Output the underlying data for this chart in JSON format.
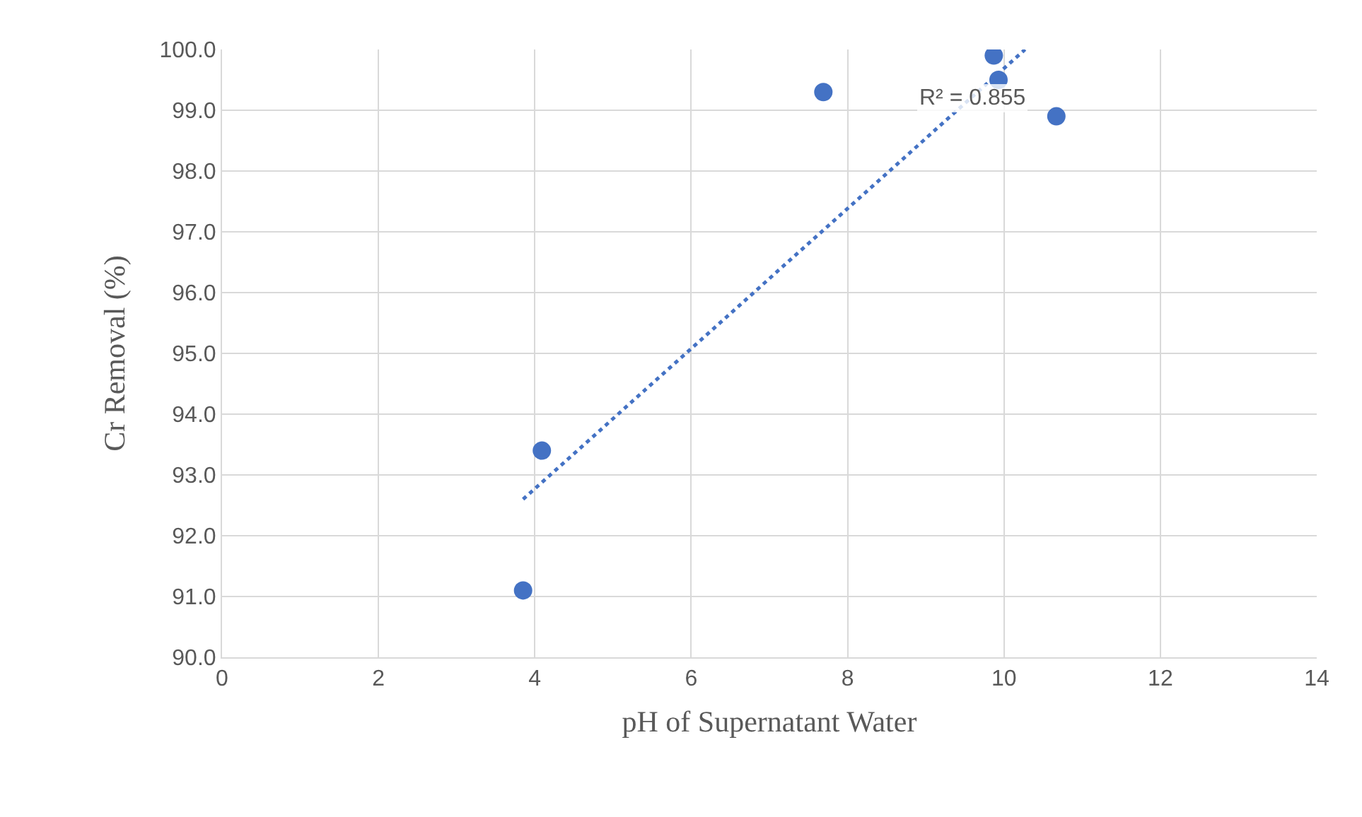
{
  "chart_data": {
    "type": "scatter",
    "xlabel": "pH of Supernatant Water",
    "ylabel": "Cr Removal (%)",
    "series": [
      {
        "color": "#4472c4",
        "marker": "circle",
        "x": [
          3.85,
          4.09,
          7.69,
          9.87,
          9.93,
          10.67
        ],
        "values": [
          91.1,
          93.4,
          99.3,
          99.9,
          99.5,
          98.9
        ]
      },
      {
        "type": "line",
        "color": "#4472c4",
        "marker": "none",
        "line_style": "dotted",
        "x": [
          3.85,
          10.27
        ],
        "values": [
          92.6,
          100.0
        ]
      }
    ],
    "annotations": [
      "R² = 0.855"
    ],
    "xlim": [
      0,
      14
    ],
    "xticks": [
      0,
      2,
      4,
      6,
      8,
      10,
      12,
      14
    ],
    "ylim": [
      90,
      100
    ],
    "yticks": [
      {
        "value": 90,
        "label": "90.0"
      },
      {
        "value": 91,
        "label": "91.0"
      },
      {
        "value": 92,
        "label": "92.0"
      },
      {
        "value": 93,
        "label": "93.0"
      },
      {
        "value": 94,
        "label": "94.0"
      },
      {
        "value": 95,
        "label": "95.0"
      },
      {
        "value": 96,
        "label": "96.0"
      },
      {
        "value": 97,
        "label": "97.0"
      },
      {
        "value": 98,
        "label": "98.0"
      },
      {
        "value": 99,
        "label": "99.0"
      },
      {
        "value": 100,
        "label": "100.0"
      }
    ],
    "grid": true
  }
}
